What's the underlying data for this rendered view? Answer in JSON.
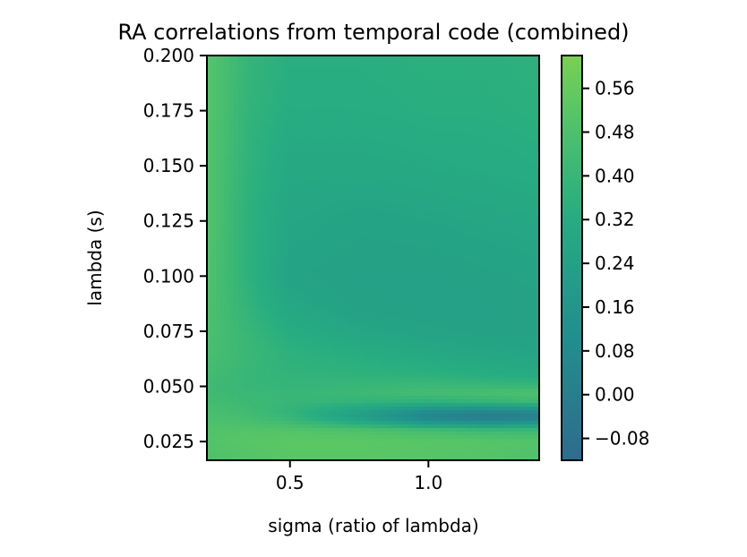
{
  "chart_data": {
    "type": "heatmap",
    "title": "RA correlations from temporal code (combined)",
    "xlabel": "sigma (ratio of lambda)",
    "ylabel": "lambda (s)",
    "xlim": [
      0.2,
      1.4
    ],
    "ylim": [
      0.0165,
      0.2
    ],
    "x_ticks": [
      {
        "value": 0.5,
        "label": "0.5"
      },
      {
        "value": 1.0,
        "label": "1.0"
      }
    ],
    "y_ticks": [
      {
        "value": 0.025,
        "label": "0.025"
      },
      {
        "value": 0.05,
        "label": "0.050"
      },
      {
        "value": 0.075,
        "label": "0.075"
      },
      {
        "value": 0.1,
        "label": "0.100"
      },
      {
        "value": 0.125,
        "label": "0.125"
      },
      {
        "value": 0.15,
        "label": "0.150"
      },
      {
        "value": 0.175,
        "label": "0.175"
      },
      {
        "value": 0.2,
        "label": "0.200"
      }
    ],
    "colorbar": {
      "range": [
        -0.12,
        0.62
      ],
      "ticks": [
        {
          "value": 0.56,
          "label": "0.56"
        },
        {
          "value": 0.48,
          "label": "0.48"
        },
        {
          "value": 0.4,
          "label": "0.40"
        },
        {
          "value": 0.32,
          "label": "0.32"
        },
        {
          "value": 0.24,
          "label": "0.24"
        },
        {
          "value": 0.16,
          "label": "0.16"
        },
        {
          "value": 0.08,
          "label": "0.08"
        },
        {
          "value": 0.0,
          "label": "0.00"
        },
        {
          "value": -0.08,
          "label": "−0.08"
        }
      ],
      "colormap": "viridis"
    },
    "grid": false,
    "x_values": [
      0.2,
      0.35,
      0.5,
      0.75,
      1.0,
      1.2,
      1.4
    ],
    "y_values": [
      0.0165,
      0.025,
      0.03,
      0.033,
      0.036,
      0.039,
      0.043,
      0.047,
      0.05,
      0.055,
      0.065,
      0.075,
      0.085,
      0.1,
      0.125,
      0.15,
      0.175,
      0.2
    ],
    "z_values": [
      [
        0.48,
        0.5,
        0.52,
        0.52,
        0.51,
        0.5,
        0.48
      ],
      [
        0.5,
        0.52,
        0.53,
        0.53,
        0.52,
        0.51,
        0.5
      ],
      [
        0.49,
        0.5,
        0.5,
        0.48,
        0.45,
        0.42,
        0.42
      ],
      [
        0.48,
        0.47,
        0.44,
        0.35,
        0.22,
        0.18,
        0.2
      ],
      [
        0.47,
        0.45,
        0.4,
        0.22,
        0.04,
        -0.03,
        0.0
      ],
      [
        0.46,
        0.43,
        0.38,
        0.26,
        0.12,
        0.08,
        0.1
      ],
      [
        0.44,
        0.42,
        0.4,
        0.38,
        0.36,
        0.38,
        0.42
      ],
      [
        0.43,
        0.41,
        0.4,
        0.42,
        0.45,
        0.46,
        0.48
      ],
      [
        0.43,
        0.4,
        0.39,
        0.4,
        0.42,
        0.41,
        0.4
      ],
      [
        0.44,
        0.4,
        0.38,
        0.37,
        0.36,
        0.34,
        0.32
      ],
      [
        0.46,
        0.41,
        0.36,
        0.33,
        0.3,
        0.28,
        0.27
      ],
      [
        0.47,
        0.4,
        0.33,
        0.28,
        0.26,
        0.25,
        0.25
      ],
      [
        0.48,
        0.38,
        0.29,
        0.25,
        0.24,
        0.24,
        0.25
      ],
      [
        0.49,
        0.36,
        0.26,
        0.24,
        0.24,
        0.25,
        0.26
      ],
      [
        0.5,
        0.36,
        0.28,
        0.26,
        0.27,
        0.28,
        0.29
      ],
      [
        0.5,
        0.37,
        0.3,
        0.3,
        0.31,
        0.32,
        0.33
      ],
      [
        0.51,
        0.38,
        0.33,
        0.33,
        0.34,
        0.34,
        0.35
      ],
      [
        0.51,
        0.39,
        0.34,
        0.34,
        0.35,
        0.35,
        0.36
      ]
    ]
  }
}
